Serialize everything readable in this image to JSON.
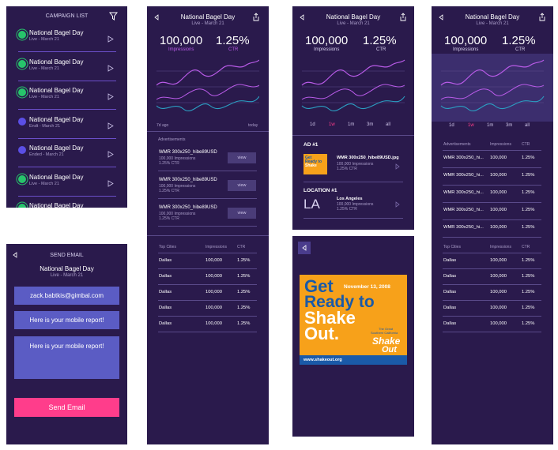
{
  "colors": {
    "panel_bg": "#2a1a4c",
    "accent_pink": "#ff3d8b",
    "field_blue": "#5b5cc4",
    "line_purple": "#b95be8",
    "line_teal": "#2b9ec2",
    "live_green": "#27c46b",
    "ended_blue": "#5b4fe6"
  },
  "campaign_list": {
    "title": "CAMPAIGN LIST",
    "filter_icon": "filter-icon",
    "items": [
      {
        "name": "National Bagel Day",
        "status": "Live - March 21",
        "state": "live"
      },
      {
        "name": "National Bagel Day",
        "status": "Live - March 21",
        "state": "live"
      },
      {
        "name": "National Bagel Day",
        "status": "Live - March 21",
        "state": "live"
      },
      {
        "name": "National Bagel Day",
        "status": "Endt - March 21",
        "state": "ended"
      },
      {
        "name": "National Bagel Day",
        "status": "Ended - March 21",
        "state": "ended"
      },
      {
        "name": "National Bagel Day",
        "status": "Live - March 21",
        "state": "live"
      },
      {
        "name": "National Bagel Day",
        "status": "",
        "state": "live"
      }
    ]
  },
  "send_email": {
    "title": "SEND EMAIL",
    "campaign": "National Bagel Day",
    "status": "Live - March 21",
    "email": "zack.babtkis@gimbal.com",
    "subject": "Here is your mobile report!",
    "body": "Here is your mobile report!",
    "send_label": "Send Email"
  },
  "header": {
    "title": "National Bagel Day",
    "subtitle": "Live - March 21"
  },
  "metrics": {
    "impressions_value": "100,000",
    "impressions_label": "Impressions",
    "ctr_value": "1.25%",
    "ctr_label": "CTR"
  },
  "chart2": {
    "start_label": "7d ago",
    "end_label": "today"
  },
  "ranges": [
    "1d",
    "1w",
    "1m",
    "3m",
    "all"
  ],
  "ads": {
    "title": "Advertisements",
    "items": [
      {
        "name": "WMR 300x250_hibe89USD",
        "impr": "100,000 Impressions",
        "ctr": "1.25% CTR",
        "view": "view"
      },
      {
        "name": "WMR 300x250_hibe89USD",
        "impr": "100,000 Impressions",
        "ctr": "1.25% CTR",
        "view": "view"
      },
      {
        "name": "WMR 300x250_hibe89USD",
        "impr": "100,000 Impressions",
        "ctr": "1.25% CTR",
        "view": "view"
      }
    ]
  },
  "top_cities": {
    "headers": [
      "Top Cities",
      "Impressions",
      "CTR"
    ],
    "rows": [
      [
        "Dallas",
        "100,000",
        "1.25%"
      ],
      [
        "Dallas",
        "100,000",
        "1.25%"
      ],
      [
        "Dallas",
        "100,000",
        "1.25%"
      ],
      [
        "Dallas",
        "100,000",
        "1.25%"
      ],
      [
        "Dallas",
        "100,000",
        "1.25%"
      ]
    ]
  },
  "detail": {
    "ad_title": "AD #1",
    "ad_file": "WMR 300x250_hibe89USD.jpg",
    "ad_impr": "100,000 Impressions",
    "ad_ctr": "1.25% CTR",
    "loc_title": "LOCATION #1",
    "loc_code": "LA",
    "loc_name": "Los Angeles",
    "loc_impr": "100,000 Impressions",
    "loc_ctr": "1.25% CTR"
  },
  "poster": {
    "line1": "Get",
    "line2": "Ready to",
    "line3": "Shake",
    "line4": "Out.",
    "date": "November 13, 2008",
    "small1": "The Great",
    "small2": "Southern California",
    "logo1": "Shake",
    "logo2": "Out",
    "url": "www.shakeout.org"
  },
  "ads_table": {
    "headers": [
      "Advertisements",
      "Impressions",
      "CTR"
    ],
    "rows": [
      [
        "WMR 300x250_hi...",
        "100,000",
        "1.25%"
      ],
      [
        "WMR 300x250_hi...",
        "100,000",
        "1.25%"
      ],
      [
        "WMR 300x250_hi...",
        "100,000",
        "1.25%"
      ],
      [
        "WMR 300x250_hi...",
        "100,000",
        "1.25%"
      ],
      [
        "WMR 300x250_hi...",
        "100,000",
        "1.25%"
      ]
    ]
  }
}
